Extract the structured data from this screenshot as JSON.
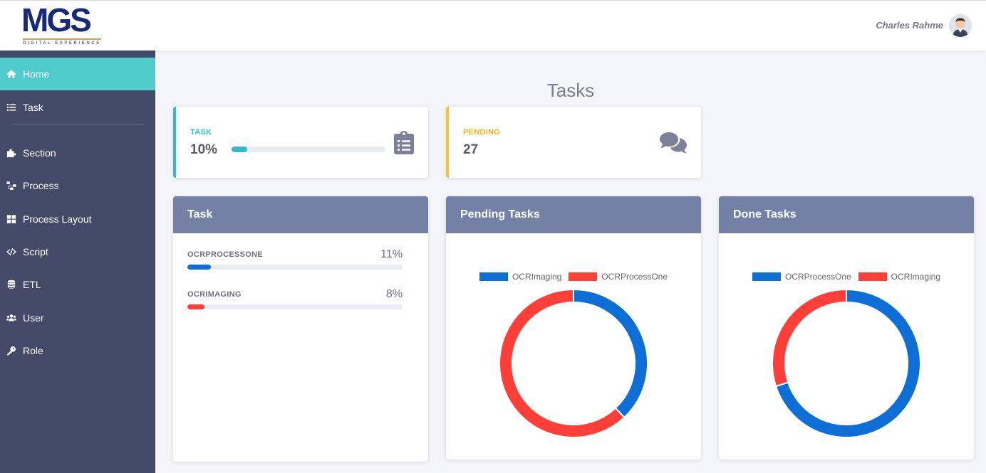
{
  "header": {
    "logo_text": "MGS",
    "logo_subtitle": "DIGITAL EXPERIENCE",
    "user_name": "Charles Rahme"
  },
  "sidebar": {
    "items": [
      {
        "label": "Home",
        "icon": "home-icon",
        "active": true
      },
      {
        "label": "Task",
        "icon": "list-icon"
      },
      {
        "label": "Section",
        "icon": "puzzle-icon"
      },
      {
        "label": "Process",
        "icon": "sitemap-icon"
      },
      {
        "label": "Process Layout",
        "icon": "grid-icon"
      },
      {
        "label": "Script",
        "icon": "code-icon"
      },
      {
        "label": "ETL",
        "icon": "database-icon"
      },
      {
        "label": "User",
        "icon": "users-icon"
      },
      {
        "label": "Role",
        "icon": "key-icon"
      }
    ]
  },
  "page": {
    "title": "Tasks"
  },
  "stats": {
    "task": {
      "label": "TASK",
      "value": "10%",
      "progress": 0.1,
      "icon": "clipboard-list-icon"
    },
    "pending": {
      "label": "PENDING",
      "value": "27",
      "icon": "comments-icon"
    }
  },
  "colors": {
    "accent": "#4fcbcb",
    "sidebar": "#434a67",
    "panel_header": "#7480a5",
    "blue": "#0d6fd6",
    "red": "#ff3f38",
    "warning": "#f6c23e",
    "info": "#36b9cc"
  },
  "task_panel": {
    "title": "Task",
    "items": [
      {
        "name": "OCRPROCESSONE",
        "percent": "11%",
        "progress": 0.11,
        "color": "#0d6fd6"
      },
      {
        "name": "OCRIMAGING",
        "percent": "8%",
        "progress": 0.08,
        "color": "#ff3f38"
      }
    ]
  },
  "pending_panel": {
    "title": "Pending Tasks"
  },
  "done_panel": {
    "title": "Done Tasks"
  },
  "chart_data": [
    {
      "type": "pie",
      "variant": "doughnut",
      "title": "Pending Tasks",
      "legend_position": "top",
      "categories": [
        "OCRImaging",
        "OCRProcessOne"
      ],
      "values": [
        38,
        62
      ],
      "colors": [
        "#0d6fd6",
        "#ff3f38"
      ]
    },
    {
      "type": "pie",
      "variant": "doughnut",
      "title": "Done Tasks",
      "legend_position": "top",
      "categories": [
        "OCRProcessOne",
        "OCRImaging"
      ],
      "values": [
        70,
        30
      ],
      "colors": [
        "#0d6fd6",
        "#ff3f38"
      ]
    }
  ]
}
